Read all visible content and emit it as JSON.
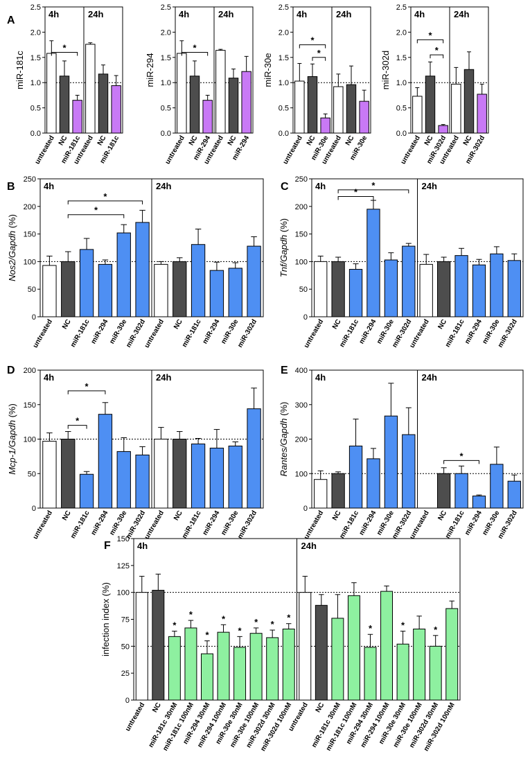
{
  "colors": {
    "untreated": "#ffffff",
    "nc": "#4d4d4d",
    "purple": "#c879f5",
    "blue": "#4e8ff3",
    "green": "#8ef0a0"
  },
  "panels": [
    {
      "letter": "A",
      "ylabel": [
        "miR-181c"
      ],
      "ylim": [
        0,
        2.5
      ],
      "ticks": [
        0.0,
        0.5,
        1.0,
        1.5,
        2.0,
        2.5
      ],
      "tick_format": "fixed1",
      "ref": 1.0,
      "split": 3,
      "time_labels": [
        "4h",
        "24h"
      ],
      "categories": [
        "untreated",
        "NC",
        "miR-181c",
        "untreated",
        "NC",
        "miR-181c"
      ],
      "values": [
        1.58,
        1.13,
        0.65,
        1.76,
        1.17,
        0.94
      ],
      "errors": [
        0.25,
        0.3,
        0.1,
        0.03,
        0.18,
        0.2
      ],
      "colors": [
        "untreated",
        "nc",
        "purple",
        "untreated",
        "nc",
        "purple"
      ],
      "sig": [
        {
          "from": 0,
          "to": 2,
          "y": 1.6,
          "label": "*"
        }
      ]
    },
    {
      "letter": "",
      "ylabel": [
        "miR-294"
      ],
      "ylim": [
        0,
        2.5
      ],
      "ticks": [
        0.0,
        0.5,
        1.0,
        1.5,
        2.0,
        2.5
      ],
      "tick_format": "fixed1",
      "ref": 1.0,
      "split": 3,
      "time_labels": [
        "4h",
        "24h"
      ],
      "categories": [
        "untreated",
        "NC",
        "miR-294",
        "untreated",
        "NC",
        "miR-294"
      ],
      "values": [
        1.58,
        1.13,
        0.65,
        1.64,
        1.09,
        1.22
      ],
      "errors": [
        0.25,
        0.3,
        0.1,
        0.02,
        0.18,
        0.3
      ],
      "colors": [
        "untreated",
        "nc",
        "purple",
        "untreated",
        "nc",
        "purple"
      ],
      "sig": [
        {
          "from": 0,
          "to": 2,
          "y": 1.6,
          "label": "*"
        }
      ]
    },
    {
      "letter": "",
      "ylabel": [
        "miR-30e"
      ],
      "ylim": [
        0,
        2.5
      ],
      "ticks": [
        0.0,
        0.5,
        1.0,
        1.5,
        2.0,
        2.5
      ],
      "tick_format": "fixed1",
      "ref": 1.0,
      "split": 3,
      "time_labels": [
        "4h",
        "24h"
      ],
      "categories": [
        "untreated",
        "NC",
        "miR-30e",
        "untreated",
        "NC",
        "miR-30e"
      ],
      "values": [
        1.03,
        1.12,
        0.3,
        0.92,
        0.96,
        0.63
      ],
      "errors": [
        0.35,
        0.25,
        0.08,
        0.25,
        0.37,
        0.22
      ],
      "colors": [
        "untreated",
        "nc",
        "purple",
        "untreated",
        "nc",
        "purple"
      ],
      "sig": [
        {
          "from": 0,
          "to": 2,
          "y": 1.75,
          "label": "*"
        },
        {
          "from": 1,
          "to": 2,
          "y": 1.5,
          "label": "*"
        }
      ]
    },
    {
      "letter": "",
      "ylabel": [
        "miR-302d"
      ],
      "ylim": [
        0,
        2.5
      ],
      "ticks": [
        0.0,
        0.5,
        1.0,
        1.5,
        2.0,
        2.5
      ],
      "tick_format": "fixed1",
      "ref": 1.0,
      "split": 3,
      "time_labels": [
        "4h",
        "24h"
      ],
      "categories": [
        "untreated",
        "NC",
        "miR-302d",
        "untreated",
        "NC",
        "miR-302d"
      ],
      "values": [
        0.73,
        1.13,
        0.15,
        0.97,
        1.26,
        0.77
      ],
      "errors": [
        0.17,
        0.28,
        0.02,
        0.33,
        0.35,
        0.2
      ],
      "colors": [
        "untreated",
        "nc",
        "purple",
        "untreated",
        "nc",
        "purple"
      ],
      "sig": [
        {
          "from": 0,
          "to": 2,
          "y": 1.85,
          "label": "*"
        },
        {
          "from": 1,
          "to": 2,
          "y": 1.55,
          "label": "*"
        }
      ]
    },
    {
      "letter": "B",
      "ylabel": [
        "Nos2/Gapdh",
        " (%)"
      ],
      "ylim": [
        0,
        250
      ],
      "ticks": [
        0,
        50,
        100,
        150,
        200,
        250
      ],
      "tick_format": "int",
      "ref": 100,
      "split": 6,
      "time_labels": [
        "4h",
        "24h"
      ],
      "categories": [
        "untreated",
        "NC",
        "miR-181c",
        "miR-294",
        "miR-30e",
        "miR-302d",
        "untreated",
        "NC",
        "miR-181c",
        "miR-294",
        "miR-30e",
        "miR-302d"
      ],
      "values": [
        93,
        100,
        122,
        95,
        152,
        171,
        95,
        100,
        131,
        84,
        88,
        128
      ],
      "errors": [
        17,
        18,
        20,
        8,
        15,
        22,
        5,
        7,
        28,
        15,
        10,
        17
      ],
      "colors": [
        "untreated",
        "nc",
        "blue",
        "blue",
        "blue",
        "blue",
        "untreated",
        "nc",
        "blue",
        "blue",
        "blue",
        "blue"
      ],
      "sig": [
        {
          "from": 1,
          "to": 5,
          "y": 210,
          "label": "*"
        },
        {
          "from": 1,
          "to": 4,
          "y": 185,
          "label": "*"
        }
      ]
    },
    {
      "letter": "C",
      "ylabel": [
        "Tnf/Gapdh",
        " (%)"
      ],
      "ylim": [
        0,
        250
      ],
      "ticks": [
        0,
        50,
        100,
        150,
        200,
        250
      ],
      "tick_format": "int",
      "ref": 100,
      "split": 6,
      "time_labels": [
        "4h",
        "24h"
      ],
      "categories": [
        "untreated",
        "NC",
        "miR-181c",
        "miR-294",
        "miR-30e",
        "miR-302d",
        "untreated",
        "NC",
        "miR-181c",
        "miR-294",
        "miR-30e",
        "miR-302d"
      ],
      "values": [
        100,
        100,
        86,
        195,
        103,
        128,
        95,
        100,
        111,
        94,
        114,
        102
      ],
      "errors": [
        10,
        8,
        10,
        16,
        13,
        5,
        18,
        8,
        13,
        10,
        13,
        12
      ],
      "colors": [
        "untreated",
        "nc",
        "blue",
        "blue",
        "blue",
        "blue",
        "untreated",
        "nc",
        "blue",
        "blue",
        "blue",
        "blue"
      ],
      "sig": [
        {
          "from": 1,
          "to": 5,
          "y": 230,
          "label": "*"
        },
        {
          "from": 1,
          "to": 3,
          "y": 218,
          "label": "*"
        }
      ]
    },
    {
      "letter": "D",
      "ylabel": [
        "Mcp-1/Gapdh",
        " (%)"
      ],
      "ylim": [
        0,
        200
      ],
      "ticks": [
        0,
        50,
        100,
        150,
        200
      ],
      "tick_format": "int",
      "ref": 100,
      "split": 6,
      "time_labels": [
        "4h",
        "24h"
      ],
      "categories": [
        "untreated",
        "NC",
        "miR-181c",
        "miR-294",
        "miR-30e",
        "miR-302d",
        "untreated",
        "NC",
        "miR-181c",
        "miR-294",
        "miR-30e",
        "miR-302d"
      ],
      "values": [
        97,
        100,
        49,
        136,
        82,
        77,
        100,
        100,
        93,
        87,
        90,
        144
      ],
      "errors": [
        12,
        11,
        4,
        17,
        20,
        12,
        17,
        11,
        8,
        27,
        6,
        30
      ],
      "colors": [
        "untreated",
        "nc",
        "blue",
        "blue",
        "blue",
        "blue",
        "untreated",
        "nc",
        "blue",
        "blue",
        "blue",
        "blue"
      ],
      "sig": [
        {
          "from": 1,
          "to": 3,
          "y": 170,
          "label": "*"
        },
        {
          "from": 1,
          "to": 2,
          "y": 120,
          "label": "*"
        }
      ]
    },
    {
      "letter": "E",
      "ylabel": [
        "Rantes/Gapdh",
        " (%)"
      ],
      "ylim": [
        0,
        400
      ],
      "ticks": [
        0,
        100,
        200,
        300,
        400
      ],
      "tick_format": "int",
      "ref": 100,
      "split": 6,
      "time_labels": [
        "4h",
        "24h"
      ],
      "categories": [
        "untreated",
        "NC",
        "miR-181c",
        "miR-294",
        "miR-30e",
        "miR-302d",
        "untreated",
        "NC",
        "miR-181c",
        "miR-294",
        "miR-30e",
        "miR-302d"
      ],
      "values": [
        83,
        100,
        180,
        143,
        267,
        213,
        0,
        100,
        100,
        35,
        127,
        78
      ],
      "errors": [
        25,
        5,
        78,
        30,
        95,
        78,
        0,
        17,
        22,
        3,
        50,
        18
      ],
      "colors": [
        "untreated",
        "nc",
        "blue",
        "blue",
        "blue",
        "blue",
        "untreated",
        "nc",
        "blue",
        "blue",
        "blue",
        "blue"
      ],
      "sig": [
        {
          "from": 7,
          "to": 9,
          "y": 138,
          "label": "*"
        }
      ]
    },
    {
      "letter": "F",
      "ylabel": [
        "infection index (%)"
      ],
      "ylim": [
        0,
        150
      ],
      "ticks": [
        0,
        25,
        50,
        75,
        100,
        125,
        150
      ],
      "tick_format": "int",
      "ref": 100,
      "ref2": 50,
      "split": 10,
      "time_labels": [
        "4h",
        "24h"
      ],
      "categories": [
        "untreated",
        "NC",
        "miR-181c 30nM",
        "miR-181c 100nM",
        "miR-294 30nM",
        "miR-294 100nM",
        "miR-30e 30nM",
        "miR-30e 100nM",
        "miR-302d 30nM",
        "miR-302d 100nM",
        "untreated",
        "NC",
        "miR-181c 30nM",
        "miR-181c 100nM",
        "miR-294 30nM",
        "miR-294 100nM",
        "miR-30e 30nM",
        "miR-30e 100nM",
        "miR-302d 30nM",
        "miR-302d 100nM"
      ],
      "values": [
        100,
        102,
        59,
        67,
        43,
        63,
        49,
        62,
        58,
        66,
        100,
        88,
        76,
        97,
        49,
        101,
        52,
        66,
        50,
        85
      ],
      "errors": [
        15,
        15,
        5,
        7,
        12,
        7,
        10,
        5,
        7,
        5,
        15,
        10,
        22,
        12,
        12,
        5,
        12,
        12,
        10,
        7
      ],
      "colors": [
        "untreated",
        "nc",
        "green",
        "green",
        "green",
        "green",
        "green",
        "green",
        "green",
        "green",
        "untreated",
        "nc",
        "green",
        "green",
        "green",
        "green",
        "green",
        "green",
        "green",
        "green"
      ],
      "stars": [
        false,
        false,
        true,
        true,
        true,
        true,
        true,
        true,
        true,
        true,
        false,
        false,
        false,
        false,
        true,
        false,
        true,
        false,
        true,
        false
      ],
      "star_label": "*"
    }
  ]
}
